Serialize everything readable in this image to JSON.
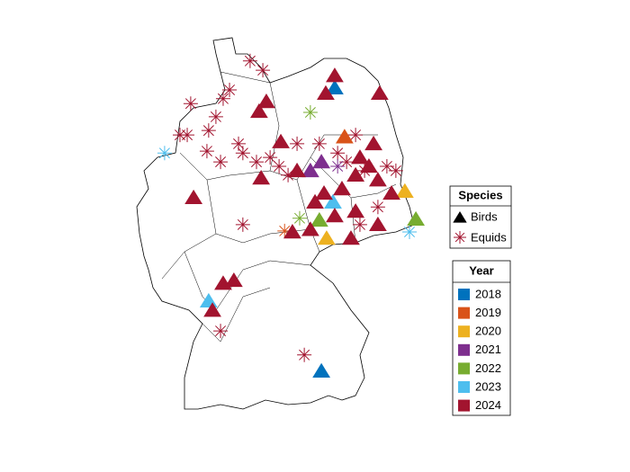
{
  "map": {
    "legend_species": {
      "title": "Species",
      "items": [
        "Birds",
        "Equids"
      ]
    },
    "legend_year": {
      "title": "Year",
      "items": [
        {
          "label": "2018",
          "color": "#0072BD"
        },
        {
          "label": "2019",
          "color": "#D95319"
        },
        {
          "label": "2020",
          "color": "#EDB120"
        },
        {
          "label": "2021",
          "color": "#7E2F8E"
        },
        {
          "label": "2022",
          "color": "#77AC30"
        },
        {
          "label": "2023",
          "color": "#4DBEEE"
        },
        {
          "label": "2024",
          "color": "#A2142F"
        }
      ]
    },
    "points": [
      {
        "lon": 9.81,
        "lat": 54.54,
        "species": "Equids",
        "year": "2024"
      },
      {
        "lon": 10.25,
        "lat": 54.35,
        "species": "Equids",
        "year": "2024"
      },
      {
        "lon": 8.88,
        "lat": 53.77,
        "species": "Equids",
        "year": "2024"
      },
      {
        "lon": 7.76,
        "lat": 53.67,
        "species": "Equids",
        "year": "2024"
      },
      {
        "lon": 7.39,
        "lat": 53.03,
        "species": "Equids",
        "year": "2024"
      },
      {
        "lon": 7.64,
        "lat": 53.03,
        "species": "Equids",
        "year": "2024"
      },
      {
        "lon": 8.38,
        "lat": 53.12,
        "species": "Equids",
        "year": "2024"
      },
      {
        "lon": 8.32,
        "lat": 52.7,
        "species": "Equids",
        "year": "2024"
      },
      {
        "lon": 8.79,
        "lat": 52.48,
        "species": "Equids",
        "year": "2024"
      },
      {
        "lon": 9.41,
        "lat": 52.85,
        "species": "Equids",
        "year": "2024"
      },
      {
        "lon": 9.56,
        "lat": 52.66,
        "species": "Equids",
        "year": "2024"
      },
      {
        "lon": 10.03,
        "lat": 52.48,
        "species": "Equids",
        "year": "2024"
      },
      {
        "lon": 10.5,
        "lat": 52.57,
        "species": "Equids",
        "year": "2024"
      },
      {
        "lon": 10.81,
        "lat": 52.39,
        "species": "Equids",
        "year": "2024"
      },
      {
        "lon": 11.43,
        "lat": 52.85,
        "species": "Equids",
        "year": "2024"
      },
      {
        "lon": 12.2,
        "lat": 52.85,
        "species": "Equids",
        "year": "2024"
      },
      {
        "lon": 13.14,
        "lat": 52.48,
        "species": "Equids",
        "year": "2024"
      },
      {
        "lon": 13.76,
        "lat": 52.3,
        "species": "Equids",
        "year": "2024"
      },
      {
        "lon": 14.53,
        "lat": 52.39,
        "species": "Equids",
        "year": "2024"
      },
      {
        "lon": 14.84,
        "lat": 52.3,
        "species": "Equids",
        "year": "2024"
      },
      {
        "lon": 9.56,
        "lat": 51.2,
        "species": "Equids",
        "year": "2024"
      },
      {
        "lon": 8.79,
        "lat": 49.03,
        "species": "Equids",
        "year": "2024"
      },
      {
        "lon": 11.68,
        "lat": 48.54,
        "species": "Equids",
        "year": "2024"
      },
      {
        "lon": 13.45,
        "lat": 53.03,
        "species": "Equids",
        "year": "2024"
      },
      {
        "lon": 12.83,
        "lat": 52.66,
        "species": "Equids",
        "year": "2024"
      },
      {
        "lon": 11.12,
        "lat": 52.21,
        "species": "Equids",
        "year": "2024"
      },
      {
        "lon": 14.22,
        "lat": 51.56,
        "species": "Equids",
        "year": "2024"
      },
      {
        "lon": 13.6,
        "lat": 51.2,
        "species": "Equids",
        "year": "2024"
      },
      {
        "lon": 8.63,
        "lat": 53.4,
        "species": "Equids",
        "year": "2024"
      },
      {
        "lon": 9.1,
        "lat": 53.95,
        "species": "Equids",
        "year": "2024"
      },
      {
        "lon": 11.89,
        "lat": 53.49,
        "species": "Equids",
        "year": "2022"
      },
      {
        "lon": 11.52,
        "lat": 51.33,
        "species": "Equids",
        "year": "2022"
      },
      {
        "lon": 6.86,
        "lat": 52.66,
        "species": "Equids",
        "year": "2023"
      },
      {
        "lon": 15.31,
        "lat": 51.05,
        "species": "Equids",
        "year": "2023"
      },
      {
        "lon": 11.0,
        "lat": 51.07,
        "species": "Equids",
        "year": "2019"
      },
      {
        "lon": 12.83,
        "lat": 52.39,
        "species": "Equids",
        "year": "2021"
      },
      {
        "lon": 12.73,
        "lat": 53.99,
        "species": "Birds",
        "year": "2018"
      },
      {
        "lon": 12.27,
        "lat": 48.21,
        "species": "Birds",
        "year": "2018"
      },
      {
        "lon": 13.07,
        "lat": 52.99,
        "species": "Birds",
        "year": "2019"
      },
      {
        "lon": 12.45,
        "lat": 50.92,
        "species": "Birds",
        "year": "2020"
      },
      {
        "lon": 15.15,
        "lat": 51.88,
        "species": "Birds",
        "year": "2020"
      },
      {
        "lon": 12.27,
        "lat": 52.48,
        "species": "Birds",
        "year": "2021"
      },
      {
        "lon": 11.89,
        "lat": 52.3,
        "species": "Birds",
        "year": "2021"
      },
      {
        "lon": 15.53,
        "lat": 51.31,
        "species": "Birds",
        "year": "2022"
      },
      {
        "lon": 12.2,
        "lat": 51.29,
        "species": "Birds",
        "year": "2022"
      },
      {
        "lon": 12.67,
        "lat": 51.66,
        "species": "Birds",
        "year": "2023"
      },
      {
        "lon": 8.38,
        "lat": 49.64,
        "species": "Birds",
        "year": "2023"
      },
      {
        "lon": 12.73,
        "lat": 54.24,
        "species": "Birds",
        "year": "2024"
      },
      {
        "lon": 12.42,
        "lat": 53.88,
        "species": "Birds",
        "year": "2024"
      },
      {
        "lon": 14.28,
        "lat": 53.88,
        "species": "Birds",
        "year": "2024"
      },
      {
        "lon": 10.37,
        "lat": 53.71,
        "species": "Birds",
        "year": "2024"
      },
      {
        "lon": 10.12,
        "lat": 53.51,
        "species": "Birds",
        "year": "2024"
      },
      {
        "lon": 10.87,
        "lat": 52.89,
        "species": "Birds",
        "year": "2024"
      },
      {
        "lon": 10.19,
        "lat": 52.15,
        "species": "Birds",
        "year": "2024"
      },
      {
        "lon": 7.86,
        "lat": 51.75,
        "species": "Birds",
        "year": "2024"
      },
      {
        "lon": 11.43,
        "lat": 52.3,
        "species": "Birds",
        "year": "2024"
      },
      {
        "lon": 13.6,
        "lat": 52.57,
        "species": "Birds",
        "year": "2024"
      },
      {
        "lon": 14.07,
        "lat": 52.85,
        "species": "Birds",
        "year": "2024"
      },
      {
        "lon": 13.91,
        "lat": 52.39,
        "species": "Birds",
        "year": "2024"
      },
      {
        "lon": 13.45,
        "lat": 52.21,
        "species": "Birds",
        "year": "2024"
      },
      {
        "lon": 14.22,
        "lat": 52.11,
        "species": "Birds",
        "year": "2024"
      },
      {
        "lon": 14.69,
        "lat": 51.84,
        "species": "Birds",
        "year": "2024"
      },
      {
        "lon": 12.05,
        "lat": 51.66,
        "species": "Birds",
        "year": "2024"
      },
      {
        "lon": 12.36,
        "lat": 51.84,
        "species": "Birds",
        "year": "2024"
      },
      {
        "lon": 12.98,
        "lat": 51.93,
        "species": "Birds",
        "year": "2024"
      },
      {
        "lon": 12.73,
        "lat": 51.38,
        "species": "Birds",
        "year": "2024"
      },
      {
        "lon": 13.45,
        "lat": 51.47,
        "species": "Birds",
        "year": "2024"
      },
      {
        "lon": 14.22,
        "lat": 51.2,
        "species": "Birds",
        "year": "2024"
      },
      {
        "lon": 11.89,
        "lat": 51.1,
        "species": "Birds",
        "year": "2024"
      },
      {
        "lon": 11.27,
        "lat": 51.05,
        "species": "Birds",
        "year": "2024"
      },
      {
        "lon": 13.29,
        "lat": 50.92,
        "species": "Birds",
        "year": "2024"
      },
      {
        "lon": 8.88,
        "lat": 50.0,
        "species": "Birds",
        "year": "2024"
      },
      {
        "lon": 9.25,
        "lat": 50.06,
        "species": "Birds",
        "year": "2024"
      },
      {
        "lon": 8.51,
        "lat": 49.45,
        "species": "Birds",
        "year": "2024"
      }
    ]
  }
}
